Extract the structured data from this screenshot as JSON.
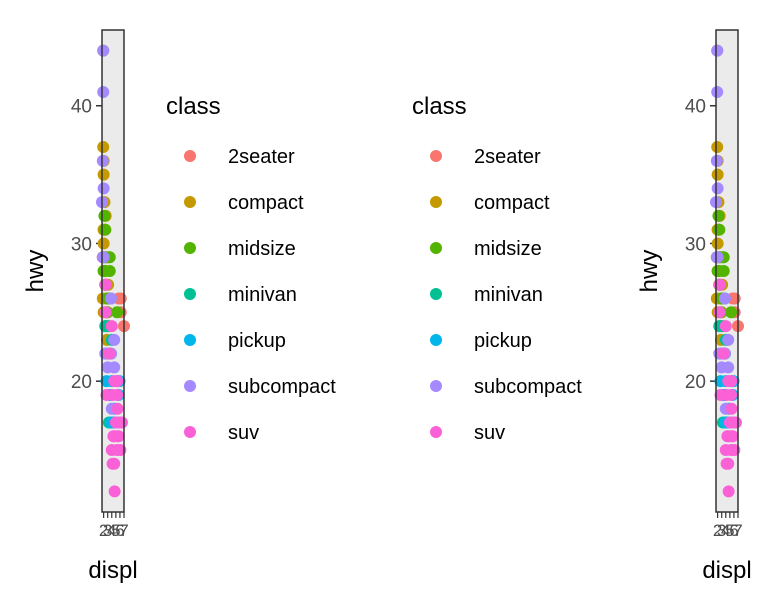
{
  "chart_data": [
    {
      "type": "scatter",
      "xlabel": "displ",
      "ylabel": "hwy",
      "x_ticks": [
        2,
        3,
        4,
        5,
        6,
        7
      ],
      "y_ticks": [
        20,
        30,
        40
      ],
      "xlim": [
        1.6,
        7.0
      ],
      "ylim": [
        10.5,
        45.5
      ],
      "grid": false,
      "panel_background": "#ebebeb",
      "legend_position": "right",
      "legend": {
        "title": "class",
        "entries": [
          "2seater",
          "compact",
          "midsize",
          "minivan",
          "pickup",
          "subcompact",
          "suv"
        ]
      },
      "series": [
        {
          "name": "2seater",
          "color": "#F8766D",
          "points": [
            [
              5.7,
              26
            ],
            [
              6.2,
              26
            ],
            [
              7.0,
              24
            ],
            [
              6.2,
              25
            ]
          ]
        },
        {
          "name": "compact",
          "color": "#C49A00",
          "points": [
            [
              1.8,
              29
            ],
            [
              2.0,
              31
            ],
            [
              2.8,
              26
            ],
            [
              3.1,
              27
            ],
            [
              1.8,
              26
            ],
            [
              2.0,
              28
            ],
            [
              2.4,
              27
            ],
            [
              2.5,
              29
            ],
            [
              2.0,
              30
            ],
            [
              2.2,
              33
            ],
            [
              2.4,
              31
            ],
            [
              2.5,
              32
            ],
            [
              1.9,
              44
            ],
            [
              1.9,
              37
            ],
            [
              2.0,
              35
            ],
            [
              1.8,
              29
            ],
            [
              2.8,
              23
            ],
            [
              2.0,
              25
            ],
            [
              2.5,
              24
            ],
            [
              3.3,
              24
            ],
            [
              3.0,
              25
            ],
            [
              2.0,
              31
            ],
            [
              2.0,
              36
            ]
          ]
        },
        {
          "name": "midsize",
          "color": "#53B400",
          "points": [
            [
              2.4,
              27
            ],
            [
              3.0,
              26
            ],
            [
              3.5,
              29
            ],
            [
              2.5,
              28
            ],
            [
              3.3,
              26
            ],
            [
              3.8,
              26
            ],
            [
              2.4,
              31
            ],
            [
              3.5,
              28
            ],
            [
              3.1,
              29
            ],
            [
              2.2,
              32
            ],
            [
              2.5,
              29
            ],
            [
              3.0,
              26
            ],
            [
              5.3,
              25
            ],
            [
              2.8,
              25
            ],
            [
              2.0,
              28
            ]
          ]
        },
        {
          "name": "minivan",
          "color": "#00C094",
          "points": [
            [
              2.4,
              24
            ],
            [
              3.0,
              24
            ],
            [
              3.3,
              22
            ],
            [
              3.8,
              22
            ],
            [
              4.0,
              23
            ],
            [
              3.3,
              17
            ]
          ]
        },
        {
          "name": "pickup",
          "color": "#00B6EB",
          "points": [
            [
              3.7,
              19
            ],
            [
              3.9,
              17
            ],
            [
              4.7,
              17
            ],
            [
              5.2,
              17
            ],
            [
              5.7,
              19
            ],
            [
              2.7,
              20
            ],
            [
              2.7,
              22
            ],
            [
              3.4,
              19
            ],
            [
              4.0,
              20
            ],
            [
              4.7,
              18
            ],
            [
              4.2,
              17
            ],
            [
              5.4,
              20
            ],
            [
              5.9,
              20
            ]
          ]
        },
        {
          "name": "subcompact",
          "color": "#A58AFF",
          "points": [
            [
              1.8,
              29
            ],
            [
              1.6,
              33
            ],
            [
              1.8,
              36
            ],
            [
              2.0,
              34
            ],
            [
              1.9,
              44
            ],
            [
              1.9,
              41
            ],
            [
              2.0,
              29
            ],
            [
              2.5,
              27
            ],
            [
              3.8,
              26
            ],
            [
              4.6,
              23
            ],
            [
              5.4,
              20
            ],
            [
              3.8,
              22
            ],
            [
              4.6,
              21
            ],
            [
              3.0,
              21
            ],
            [
              4.0,
              18
            ],
            [
              2.4,
              22
            ]
          ]
        },
        {
          "name": "suv",
          "color": "#FB61D7",
          "points": [
            [
              5.3,
              20
            ],
            [
              5.3,
              15
            ],
            [
              5.7,
              16
            ],
            [
              6.0,
              17
            ],
            [
              6.5,
              17
            ],
            [
              5.4,
              18
            ],
            [
              4.7,
              12
            ],
            [
              4.0,
              15
            ],
            [
              4.6,
              14
            ],
            [
              5.4,
              16
            ],
            [
              6.1,
              15
            ],
            [
              4.2,
              19
            ],
            [
              4.7,
              16
            ],
            [
              5.3,
              19
            ],
            [
              4.4,
              16
            ],
            [
              4.6,
              20
            ],
            [
              5.0,
              17
            ],
            [
              4.0,
              24
            ],
            [
              2.5,
              25
            ],
            [
              3.4,
              22
            ],
            [
              2.5,
              27
            ],
            [
              2.7,
              19
            ],
            [
              4.2,
              14
            ]
          ]
        }
      ]
    },
    {
      "type": "scatter",
      "xlabel": "displ",
      "ylabel": "hwy",
      "x_ticks": [
        2,
        3,
        4,
        5,
        6,
        7
      ],
      "y_ticks": [
        20,
        30,
        40
      ],
      "xlim": [
        1.6,
        7.0
      ],
      "ylim": [
        10.5,
        45.5
      ],
      "grid": false,
      "panel_background": "#ebebeb",
      "legend_position": "left",
      "legend": {
        "title": "class",
        "entries": [
          "2seater",
          "compact",
          "midsize",
          "minivan",
          "pickup",
          "subcompact",
          "suv"
        ]
      },
      "series_from_chart": 0
    }
  ]
}
